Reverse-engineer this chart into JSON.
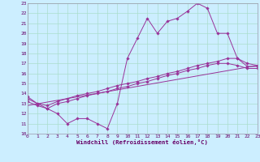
{
  "xlabel": "Windchill (Refroidissement éolien,°C)",
  "bg_color": "#cceeff",
  "grid_color": "#aaddcc",
  "line_color": "#993399",
  "xlim": [
    0,
    23
  ],
  "ylim": [
    10,
    23
  ],
  "xticks": [
    0,
    1,
    2,
    3,
    4,
    5,
    6,
    7,
    8,
    9,
    10,
    11,
    12,
    13,
    14,
    15,
    16,
    17,
    18,
    19,
    20,
    21,
    22,
    23
  ],
  "yticks": [
    10,
    11,
    12,
    13,
    14,
    15,
    16,
    17,
    18,
    19,
    20,
    21,
    22,
    23
  ],
  "line1_x": [
    0,
    1,
    2,
    3,
    4,
    5,
    6,
    7,
    8,
    9,
    10,
    11,
    12,
    13,
    14,
    15,
    16,
    17,
    18,
    19,
    20,
    21,
    22,
    23
  ],
  "line1_y": [
    13.7,
    13.0,
    12.5,
    12.0,
    11.0,
    11.5,
    11.5,
    11.0,
    10.5,
    13.0,
    17.5,
    19.5,
    21.5,
    20.0,
    21.2,
    21.5,
    22.2,
    23.0,
    22.5,
    20.0,
    20.0,
    17.5,
    16.7,
    16.7
  ],
  "line2_x": [
    0,
    1,
    2,
    3,
    4,
    5,
    6,
    7,
    8,
    9,
    10,
    11,
    12,
    13,
    14,
    15,
    16,
    17,
    18,
    19,
    20,
    21,
    22,
    23
  ],
  "line2_y": [
    13.5,
    13.0,
    12.8,
    13.2,
    13.5,
    13.8,
    14.0,
    14.2,
    14.5,
    14.8,
    15.0,
    15.2,
    15.5,
    15.7,
    16.0,
    16.2,
    16.5,
    16.8,
    17.0,
    17.2,
    17.5,
    17.5,
    17.0,
    16.8
  ],
  "line3_x": [
    0,
    1,
    2,
    3,
    4,
    5,
    6,
    7,
    8,
    9,
    10,
    11,
    12,
    13,
    14,
    15,
    16,
    17,
    18,
    19,
    20,
    21,
    22,
    23
  ],
  "line3_y": [
    13.2,
    12.8,
    12.5,
    13.0,
    13.2,
    13.5,
    13.8,
    14.0,
    14.2,
    14.5,
    14.7,
    15.0,
    15.2,
    15.5,
    15.8,
    16.0,
    16.3,
    16.5,
    16.8,
    17.0,
    17.0,
    16.8,
    16.5,
    16.5
  ],
  "line4_x": [
    0,
    23
  ],
  "line4_y": [
    12.8,
    16.8
  ],
  "tick_fontsize": 4.5,
  "xlabel_fontsize": 5.2,
  "marker_size": 1.8,
  "line_width": 0.7
}
